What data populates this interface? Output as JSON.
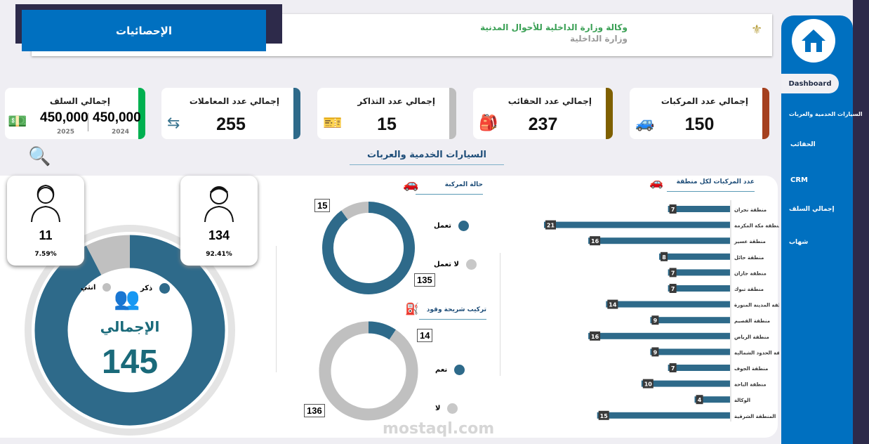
{
  "header": {
    "title": "الإحصائيات",
    "org_line1": "وكالة وزارة الداخلية للأحوال المدنية",
    "org_line2": "وزارة الداخلية"
  },
  "sidebar": {
    "items": [
      {
        "label": "Dashboard",
        "active": true
      },
      {
        "label": "السيارات الخدمية والعربات"
      },
      {
        "label": "الحقائب"
      },
      {
        "label": "CRM"
      },
      {
        "label": "إجمالي السلف"
      },
      {
        "label": "شهاب"
      }
    ]
  },
  "kpis": [
    {
      "title": "إجمالي عدد المركبات",
      "value": "150",
      "icon": "cars-icon",
      "color": "#a5401f"
    },
    {
      "title": "إجمالي عدد الحقائب",
      "value": "237",
      "icon": "bags-icon",
      "color": "#7f6000"
    },
    {
      "title": "إجمالي عدد التذاكر",
      "value": "15",
      "icon": "tickets-icon",
      "color": "#bdbdbd"
    },
    {
      "title": "إجمالي عدد المعاملات",
      "value": "255",
      "icon": "exchange-icon",
      "color": "#2e6a8a"
    }
  ],
  "advances": {
    "title": "إجمالي السلف",
    "v2024": "450,000",
    "y2024": "2024",
    "v2025": "450,000",
    "y2025": "2025",
    "color": "#00b050"
  },
  "section_title": "السيارات الخدمية والعربات",
  "gender": {
    "male": {
      "count": "134",
      "pct": "92.41%",
      "label": "ذكر"
    },
    "female": {
      "count": "11",
      "pct": "7.59%",
      "label": "انثي"
    },
    "total_label": "الإجمالي",
    "total": "145"
  },
  "colors": {
    "primary": "#2e6a8a",
    "secondary": "#c0c0c0",
    "sidebar": "#0070c0",
    "dark": "#2d2a4a"
  },
  "chart_data": [
    {
      "type": "pie",
      "title": "حالة المركبة",
      "categories": [
        "تعمل",
        "لا تعمل"
      ],
      "values": [
        135,
        15
      ]
    },
    {
      "type": "pie",
      "title": "تركيب شريحة وقود",
      "categories": [
        "نعم",
        "لا"
      ],
      "values": [
        14,
        136
      ]
    },
    {
      "type": "bar",
      "title": "عدد المركبات لكل منطقة",
      "categories": [
        "منطقة نجران",
        "منطقة مكة المكرمة",
        "منطقة عسير",
        "منطقة حائل",
        "منطقة جازان",
        "منطقة تبوك",
        "منطقة المدينة المنورة",
        "منطقة القصيم",
        "منطقة الرياض",
        "منطقة الحدود الشمالية",
        "منطقة الجوف",
        "منطقة الباحة",
        "الوكالة",
        "المنطقة الشرقية"
      ],
      "values": [
        7,
        21,
        16,
        8,
        7,
        7,
        14,
        9,
        16,
        9,
        7,
        10,
        4,
        15
      ]
    },
    {
      "type": "pie",
      "title": "",
      "categories": [
        "ذكر",
        "انثي"
      ],
      "values": [
        134,
        11
      ]
    }
  ],
  "watermark": "mostaql.com"
}
